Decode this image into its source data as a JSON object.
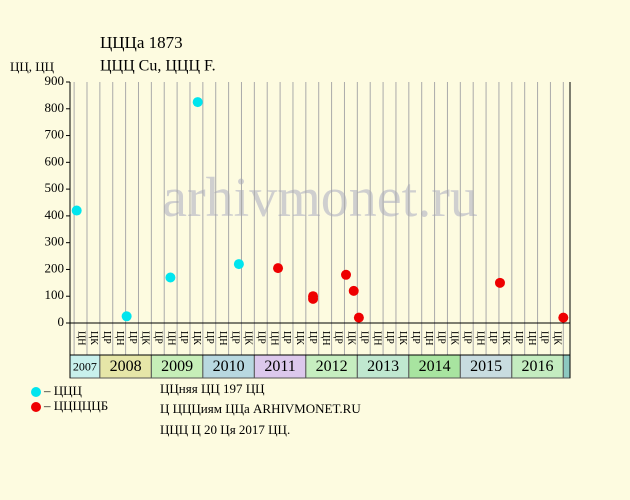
{
  "title": "ЦЦЦа 1873",
  "subtitle": "ЦЦЦ Cu, ЦЦЦ F.",
  "watermark": "arhivmonet.ru",
  "notes": [
    "ЦЦняя ЦЦ 197 ЦЦ",
    "Ц ЦЦЦиям ЦЦа ARHIVMONET.RU",
    "ЦЦЦ Ц 20 Ця 2017 ЦЦ."
  ],
  "chart_data": {
    "type": "scatter",
    "y_label": "ЦЦ, ЦЦ",
    "xlim": [
      2007.42,
      2017.13
    ],
    "xticks": [
      {
        "value": 2007,
        "label": "2007"
      },
      {
        "value": 2008,
        "label": "2008"
      },
      {
        "value": 2009,
        "label": "2009"
      },
      {
        "value": 2010,
        "label": "2010"
      },
      {
        "value": 2011,
        "label": "2011"
      },
      {
        "value": 2012,
        "label": "2012"
      },
      {
        "value": 2013,
        "label": "2013"
      },
      {
        "value": 2014,
        "label": "2014"
      },
      {
        "value": 2015,
        "label": "2015"
      },
      {
        "value": 2016,
        "label": "2016"
      }
    ],
    "ylim": [
      0,
      900
    ],
    "yticks": [
      0,
      100,
      200,
      300,
      400,
      500,
      600,
      700,
      800,
      900
    ],
    "sublabels": [
      "ЦН",
      "ЦК",
      "ЦР",
      "ЦН",
      "ЦР",
      "ЦК",
      "ЦР",
      "ЦН",
      "ЦР",
      "ЦК",
      "ЦР",
      "ЦН",
      "ЦР",
      "ЦК",
      "ЦР",
      "ЦН",
      "ЦР",
      "ЦК",
      "ЦР",
      "ЦН",
      "ЦР",
      "ЦК",
      "ЦР",
      "ЦН",
      "ЦР",
      "ЦК",
      "ЦР",
      "ЦН",
      "ЦР",
      "ЦК",
      "ЦР",
      "ЦН",
      "ЦР",
      "ЦК",
      "ЦР",
      "ЦН",
      "ЦР",
      "ЦК"
    ],
    "series": [
      {
        "name": "– ЦЦЦ",
        "color": "#00e5ee",
        "x": [
          2007.55,
          2008.52,
          2009.37,
          2009.9,
          2010.7
        ],
        "values": [
          420,
          25,
          170,
          825,
          220
        ]
      },
      {
        "name": "– ЦЦЦЦЦБ",
        "color": "#ee0000",
        "x": [
          2011.46,
          2012.14,
          2012.14,
          2012.78,
          2012.93,
          2013.03,
          2015.77,
          2017.0
        ],
        "values": [
          205,
          100,
          90,
          180,
          120,
          20,
          150,
          20
        ]
      }
    ]
  }
}
